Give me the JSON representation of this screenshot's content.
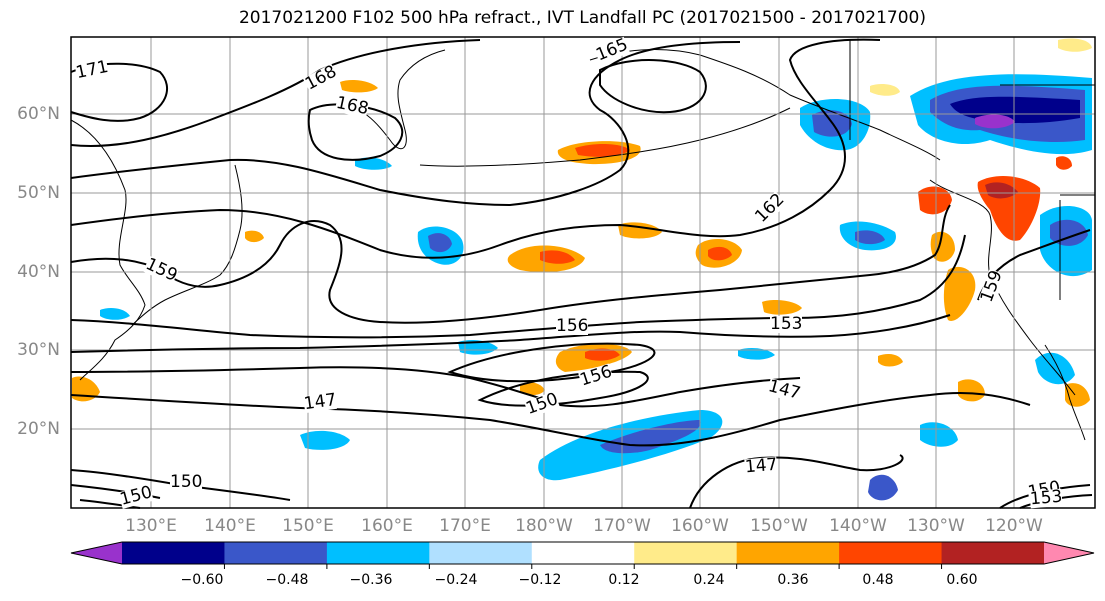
{
  "title": "2017021200 F102 500 hPa refract., IVT Landfall PC (2017021500 - 2017021700)",
  "lat_labels": [
    "60°N",
    "50°N",
    "40°N",
    "30°N",
    "20°N"
  ],
  "lon_labels": [
    "130°E",
    "140°E",
    "150°E",
    "160°E",
    "170°E",
    "180°W",
    "170°W",
    "160°W",
    "150°W",
    "140°W",
    "130°W",
    "120°W"
  ],
  "contour_labels": [
    "171",
    "168",
    "168",
    "165",
    "162",
    "159",
    "156",
    "156",
    "153",
    "150",
    "147",
    "147",
    "147",
    "150",
    "153",
    "159",
    "150",
    "150"
  ],
  "colorbar": {
    "ticks": [
      "−0.60",
      "−0.48",
      "−0.36",
      "−0.24",
      "−0.12",
      "0.12",
      "0.24",
      "0.36",
      "0.48",
      "0.60"
    ],
    "colors": [
      "#9932cc",
      "#00008b",
      "#3a57c9",
      "#00bfff",
      "#b0e0ff",
      "#ffffff",
      "#ffeb8a",
      "#ffa500",
      "#ff4500",
      "#b22222",
      "#ff88b0"
    ]
  },
  "colors": {
    "contour": "#000000",
    "grid": "#999999",
    "axis_label": "#888888",
    "positive_low": "#ffeb8a",
    "positive_mid": "#ffa500",
    "positive_high": "#ff4500",
    "positive_max": "#b22222",
    "negative_low": "#b0e0ff",
    "negative_mid": "#00bfff",
    "negative_high": "#3a57c9",
    "negative_max": "#00008b"
  }
}
